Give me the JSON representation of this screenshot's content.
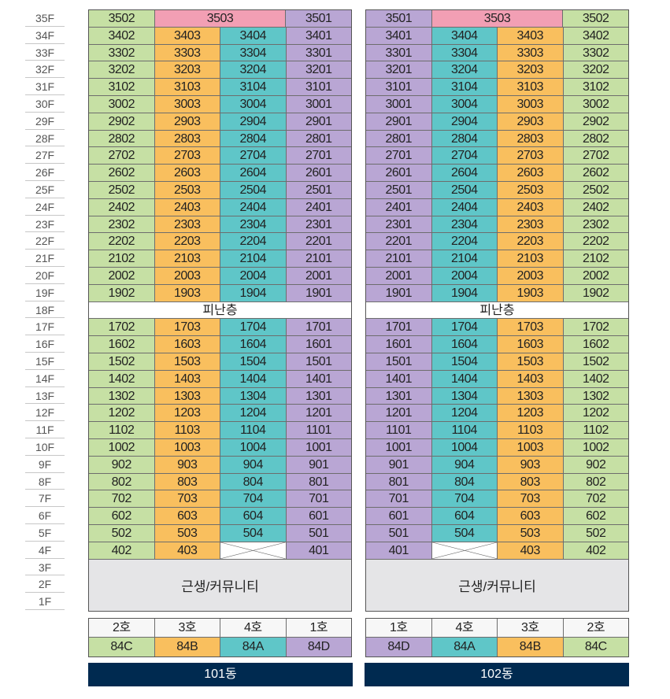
{
  "floors": [
    "35F",
    "34F",
    "33F",
    "32F",
    "31F",
    "30F",
    "29F",
    "28F",
    "27F",
    "26F",
    "25F",
    "24F",
    "23F",
    "22F",
    "21F",
    "20F",
    "19F",
    "18F",
    "17F",
    "16F",
    "15F",
    "14F",
    "13F",
    "12F",
    "11F",
    "10F",
    "9F",
    "8F",
    "7F",
    "6F",
    "5F",
    "4F",
    "3F",
    "2F",
    "1F"
  ],
  "buildings": [
    {
      "name": "101동",
      "refuge_label": "피난층",
      "commercial_label": "근생/커뮤니티",
      "units": [
        [
          "3502",
          "3503",
          null,
          "3501"
        ],
        [
          "3402",
          "3403",
          "3404",
          "3401"
        ],
        [
          "3302",
          "3303",
          "3304",
          "3301"
        ],
        [
          "3202",
          "3203",
          "3204",
          "3201"
        ],
        [
          "3102",
          "3103",
          "3104",
          "3101"
        ],
        [
          "3002",
          "3003",
          "3004",
          "3001"
        ],
        [
          "2902",
          "2903",
          "2904",
          "2901"
        ],
        [
          "2802",
          "2803",
          "2804",
          "2801"
        ],
        [
          "2702",
          "2703",
          "2704",
          "2701"
        ],
        [
          "2602",
          "2603",
          "2604",
          "2601"
        ],
        [
          "2502",
          "2503",
          "2504",
          "2501"
        ],
        [
          "2402",
          "2403",
          "2404",
          "2401"
        ],
        [
          "2302",
          "2303",
          "2304",
          "2301"
        ],
        [
          "2202",
          "2203",
          "2204",
          "2201"
        ],
        [
          "2102",
          "2103",
          "2104",
          "2101"
        ],
        [
          "2002",
          "2003",
          "2004",
          "2001"
        ],
        [
          "1902",
          "1903",
          "1904",
          "1901"
        ],
        [
          "1702",
          "1703",
          "1704",
          "1701"
        ],
        [
          "1602",
          "1603",
          "1604",
          "1601"
        ],
        [
          "1502",
          "1503",
          "1504",
          "1501"
        ],
        [
          "1402",
          "1403",
          "1404",
          "1401"
        ],
        [
          "1302",
          "1303",
          "1304",
          "1301"
        ],
        [
          "1202",
          "1203",
          "1204",
          "1201"
        ],
        [
          "1102",
          "1103",
          "1104",
          "1101"
        ],
        [
          "1002",
          "1003",
          "1004",
          "1001"
        ],
        [
          "902",
          "903",
          "904",
          "901"
        ],
        [
          "802",
          "803",
          "804",
          "801"
        ],
        [
          "702",
          "703",
          "704",
          "701"
        ],
        [
          "602",
          "603",
          "604",
          "601"
        ],
        [
          "502",
          "503",
          "504",
          "501"
        ],
        [
          "402",
          "403",
          "",
          "401"
        ]
      ],
      "col_colors": [
        "#c6e0a4",
        "#f9bf5e",
        "#5fc6c8",
        "#b9a6d4"
      ],
      "legend_lines": [
        "2호",
        "3호",
        "4호",
        "1호"
      ],
      "legend_types": [
        "84C",
        "84B",
        "84A",
        "84D"
      ]
    },
    {
      "name": "102동",
      "refuge_label": "피난층",
      "commercial_label": "근생/커뮤니티",
      "units": [
        [
          "3501",
          "3503",
          null,
          "3502"
        ],
        [
          "3401",
          "3404",
          "3403",
          "3402"
        ],
        [
          "3301",
          "3304",
          "3303",
          "3302"
        ],
        [
          "3201",
          "3204",
          "3203",
          "3202"
        ],
        [
          "3101",
          "3104",
          "3103",
          "3102"
        ],
        [
          "3001",
          "3004",
          "3003",
          "3002"
        ],
        [
          "2901",
          "2904",
          "2903",
          "2902"
        ],
        [
          "2801",
          "2804",
          "2803",
          "2802"
        ],
        [
          "2701",
          "2704",
          "2703",
          "2702"
        ],
        [
          "2601",
          "2604",
          "2603",
          "2602"
        ],
        [
          "2501",
          "2504",
          "2503",
          "2502"
        ],
        [
          "2401",
          "2404",
          "2403",
          "2402"
        ],
        [
          "2301",
          "2304",
          "2303",
          "2302"
        ],
        [
          "2201",
          "2204",
          "2203",
          "2202"
        ],
        [
          "2101",
          "2104",
          "2103",
          "2102"
        ],
        [
          "2001",
          "2004",
          "2003",
          "2002"
        ],
        [
          "1901",
          "1904",
          "1903",
          "1902"
        ],
        [
          "1701",
          "1704",
          "1703",
          "1702"
        ],
        [
          "1601",
          "1604",
          "1603",
          "1602"
        ],
        [
          "1501",
          "1504",
          "1503",
          "1502"
        ],
        [
          "1401",
          "1404",
          "1403",
          "1402"
        ],
        [
          "1301",
          "1304",
          "1303",
          "1302"
        ],
        [
          "1201",
          "1204",
          "1203",
          "1202"
        ],
        [
          "1101",
          "1104",
          "1103",
          "1102"
        ],
        [
          "1001",
          "1004",
          "1003",
          "1002"
        ],
        [
          "901",
          "904",
          "903",
          "902"
        ],
        [
          "801",
          "804",
          "803",
          "802"
        ],
        [
          "701",
          "704",
          "703",
          "702"
        ],
        [
          "601",
          "604",
          "603",
          "602"
        ],
        [
          "501",
          "504",
          "503",
          "502"
        ],
        [
          "401",
          "",
          "403",
          "402"
        ]
      ],
      "col_colors": [
        "#b9a6d4",
        "#5fc6c8",
        "#f9bf5e",
        "#c6e0a4"
      ],
      "legend_lines": [
        "1호",
        "4호",
        "3호",
        "2호"
      ],
      "legend_types": [
        "84D",
        "84A",
        "84B",
        "84C"
      ]
    }
  ],
  "penthouse_color": "#f29fb4",
  "header_bg": "#002a50"
}
